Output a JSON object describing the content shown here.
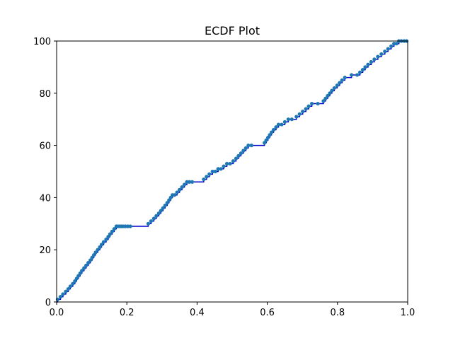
{
  "chart_data": {
    "type": "line",
    "title": "ECDF Plot",
    "xlabel": "",
    "ylabel": "",
    "xlim": [
      0,
      1
    ],
    "ylim": [
      0,
      100
    ],
    "x_ticks": [
      0.0,
      0.2,
      0.4,
      0.6,
      0.8,
      1.0
    ],
    "x_tick_labels": [
      "0.0",
      "0.2",
      "0.4",
      "0.6",
      "0.8",
      "1.0"
    ],
    "y_ticks": [
      0,
      20,
      40,
      60,
      80,
      100
    ],
    "y_tick_labels": [
      "0",
      "20",
      "40",
      "60",
      "80",
      "100"
    ],
    "grid": false,
    "colors": {
      "step_line": "#0000cd",
      "points": "#1f77b4"
    },
    "series": [
      {
        "values_x": [
          0.003,
          0.011,
          0.018,
          0.026,
          0.033,
          0.039,
          0.046,
          0.052,
          0.057,
          0.062,
          0.067,
          0.072,
          0.078,
          0.084,
          0.09,
          0.096,
          0.101,
          0.106,
          0.111,
          0.117,
          0.123,
          0.128,
          0.134,
          0.141,
          0.147,
          0.152,
          0.158,
          0.164,
          0.17,
          0.175,
          0.18,
          0.185,
          0.19,
          0.196,
          0.203,
          0.21,
          0.261,
          0.269,
          0.277,
          0.284,
          0.291,
          0.297,
          0.303,
          0.309,
          0.315,
          0.32,
          0.325,
          0.33,
          0.336,
          0.343,
          0.35,
          0.357,
          0.364,
          0.371,
          0.378,
          0.386,
          0.419,
          0.427,
          0.435,
          0.444,
          0.452,
          0.46,
          0.468,
          0.476,
          0.485,
          0.494,
          0.503,
          0.511,
          0.518,
          0.525,
          0.532,
          0.539,
          0.546,
          0.555,
          0.592,
          0.597,
          0.602,
          0.607,
          0.612,
          0.618,
          0.625,
          0.632,
          0.641,
          0.65,
          0.66,
          0.67,
          0.683,
          0.692,
          0.701,
          0.71,
          0.718,
          0.727,
          0.744,
          0.76,
          0.766,
          0.772,
          0.778,
          0.784,
          0.791,
          0.799,
          0.806,
          0.813,
          0.821,
          0.84,
          0.856,
          0.864,
          0.872,
          0.879,
          0.887,
          0.896,
          0.905,
          0.915,
          0.925,
          0.935,
          0.944,
          0.953,
          0.961,
          0.968,
          0.975,
          0.982,
          0.99,
          0.997
        ],
        "values_y": [
          1,
          2,
          3,
          4,
          5,
          6,
          7,
          8,
          9,
          10,
          11,
          12,
          13,
          14,
          15,
          16,
          17,
          18,
          19,
          20,
          21,
          22,
          23,
          24,
          25,
          26,
          27,
          28,
          29,
          29,
          29,
          29,
          29,
          29,
          29,
          29,
          30,
          31,
          32,
          33,
          34,
          35,
          36,
          37,
          38,
          39,
          40,
          41,
          41,
          42,
          43,
          44,
          45,
          46,
          46,
          46,
          47,
          48,
          49,
          50,
          50,
          51,
          51,
          52,
          53,
          53,
          54,
          55,
          56,
          57,
          58,
          59,
          60,
          60,
          61,
          62,
          63,
          64,
          65,
          66,
          67,
          68,
          68,
          69,
          70,
          70,
          71,
          72,
          73,
          74,
          75,
          76,
          76,
          77,
          78,
          79,
          80,
          81,
          82,
          83,
          84,
          85,
          86,
          87,
          87,
          88,
          89,
          90,
          91,
          92,
          93,
          94,
          95,
          96,
          97,
          98,
          99,
          99,
          100,
          100,
          100,
          100
        ]
      }
    ]
  }
}
